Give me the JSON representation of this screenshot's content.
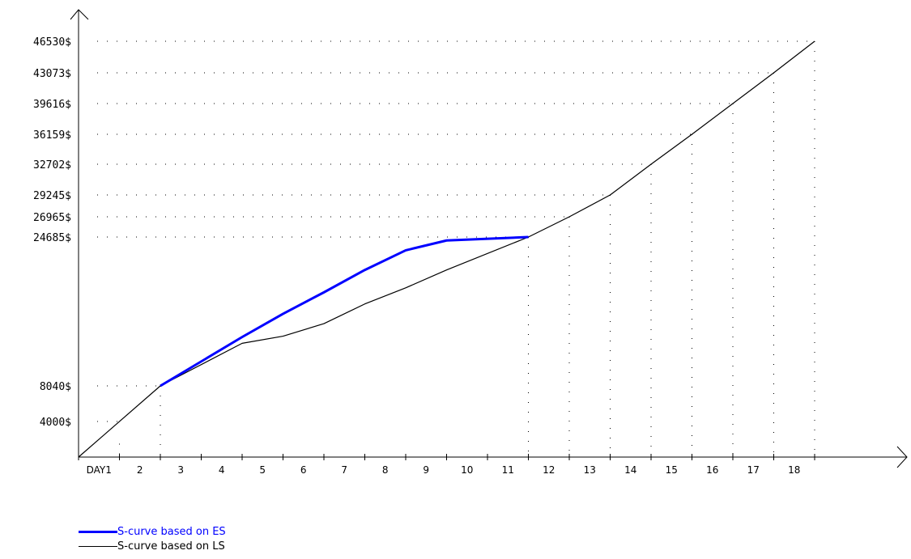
{
  "chart_data": {
    "type": "line",
    "x_tick_labels": [
      "DAY1",
      "2",
      "3",
      "4",
      "5",
      "6",
      "7",
      "8",
      "9",
      "10",
      "11",
      "12",
      "13",
      "14",
      "15",
      "16",
      "17",
      "18"
    ],
    "y_tick_labels": [
      "4000$",
      "8040$",
      "24685$",
      "26965$",
      "29245$",
      "32702$",
      "36159$",
      "39616$",
      "43073$",
      "46530$"
    ],
    "y_tick_values": [
      4000,
      8040,
      24685,
      26965,
      29245,
      32702,
      36159,
      39616,
      43073,
      46530
    ],
    "series": [
      {
        "name": "S-curve based on ES",
        "color": "#0000ff",
        "points": [
          [
            2,
            8040
          ],
          [
            4,
            13500
          ],
          [
            5,
            16100
          ],
          [
            6,
            18500
          ],
          [
            7,
            21000
          ],
          [
            8,
            23200
          ],
          [
            9,
            24300
          ],
          [
            11,
            24685
          ]
        ]
      },
      {
        "name": "S-curve based on LS",
        "color": "#000000",
        "points": [
          [
            0,
            0
          ],
          [
            2,
            8040
          ],
          [
            4,
            12800
          ],
          [
            5,
            13600
          ],
          [
            6,
            15000
          ],
          [
            7,
            17200
          ],
          [
            8,
            19000
          ],
          [
            9,
            21000
          ],
          [
            11,
            24685
          ],
          [
            12,
            26965
          ],
          [
            13,
            29245
          ],
          [
            14,
            32702
          ],
          [
            15,
            36159
          ],
          [
            16,
            39616
          ],
          [
            17,
            43073
          ],
          [
            18,
            46530
          ]
        ]
      }
    ],
    "x_guides": [
      [
        1,
        1500
      ],
      [
        2,
        8040
      ],
      [
        11,
        24685
      ],
      [
        12,
        26965
      ],
      [
        13,
        29245
      ],
      [
        14,
        32702
      ],
      [
        15,
        36159
      ],
      [
        16,
        39616
      ],
      [
        17,
        43073
      ],
      [
        18,
        46530
      ]
    ],
    "legend_position": "bottom-left"
  }
}
